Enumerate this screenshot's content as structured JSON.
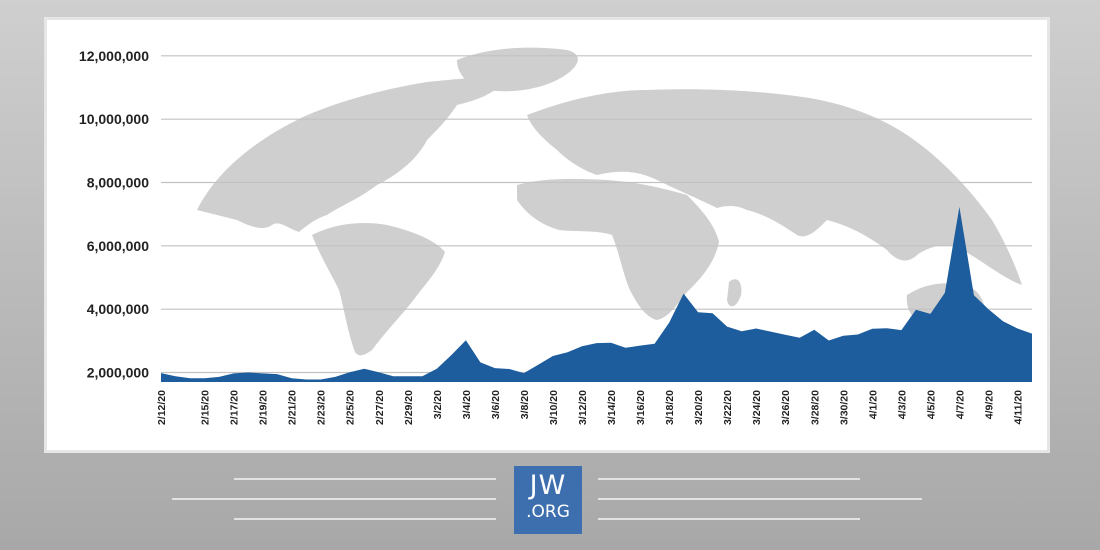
{
  "chart_data": {
    "type": "area",
    "title": "",
    "xlabel": "",
    "ylabel": "",
    "ylim": [
      1700000,
      12500000
    ],
    "yticks": [
      2000000,
      4000000,
      6000000,
      8000000,
      10000000,
      12000000
    ],
    "ytick_labels": [
      "2,000,000",
      "4,000,000",
      "6,000,000",
      "8,000,000",
      "10,000,000",
      "12,000,000"
    ],
    "x_dates": [
      "2/12/20",
      "2/13/20",
      "2/14/20",
      "2/15/20",
      "2/16/20",
      "2/17/20",
      "2/18/20",
      "2/19/20",
      "2/20/20",
      "2/21/20",
      "2/22/20",
      "2/23/20",
      "2/24/20",
      "2/25/20",
      "2/26/20",
      "2/27/20",
      "2/28/20",
      "2/29/20",
      "3/1/20",
      "3/2/20",
      "3/3/20",
      "3/4/20",
      "3/5/20",
      "3/6/20",
      "3/7/20",
      "3/8/20",
      "3/9/20",
      "3/10/20",
      "3/11/20",
      "3/12/20",
      "3/13/20",
      "3/14/20",
      "3/15/20",
      "3/16/20",
      "3/17/20",
      "3/18/20",
      "3/19/20",
      "3/20/20",
      "3/21/20",
      "3/22/20",
      "3/23/20",
      "3/24/20",
      "3/25/20",
      "3/26/20",
      "3/27/20",
      "3/28/20",
      "3/29/20",
      "3/30/20",
      "3/31/20",
      "4/1/20",
      "4/2/20",
      "4/3/20",
      "4/4/20",
      "4/5/20",
      "4/6/20",
      "4/7/20",
      "4/8/20",
      "4/9/20",
      "4/10/20",
      "4/11/20",
      "4/12/20"
    ],
    "x_tick_labels": [
      "2/12/20",
      "2/15/20",
      "2/17/20",
      "2/19/20",
      "2/21/20",
      "2/23/20",
      "2/25/20",
      "2/27/20",
      "2/29/20",
      "3/2/20",
      "3/4/20",
      "3/6/20",
      "3/8/20",
      "3/10/20",
      "3/12/20",
      "3/14/20",
      "3/16/20",
      "3/18/20",
      "3/20/20",
      "3/22/20",
      "3/24/20",
      "3/26/20",
      "3/28/20",
      "3/30/20",
      "4/1/20",
      "4/3/20",
      "4/5/20",
      "4/7/20",
      "4/9/20",
      "4/11/20"
    ],
    "series": [
      {
        "values": [
          1980000,
          1880000,
          1820000,
          1820000,
          1860000,
          1970000,
          2000000,
          1970000,
          1950000,
          1820000,
          1780000,
          1780000,
          1860000,
          2010000,
          2120000,
          2010000,
          1880000,
          1880000,
          1880000,
          2120000,
          2550000,
          3020000,
          2320000,
          2140000,
          2110000,
          1980000,
          2250000,
          2520000,
          2640000,
          2830000,
          2930000,
          2940000,
          2780000,
          2850000,
          2910000,
          3570000,
          4490000,
          3900000,
          3870000,
          3450000,
          3300000,
          3390000,
          3290000,
          3190000,
          3100000,
          3350000,
          3010000,
          3160000,
          3200000,
          3380000,
          3400000,
          3340000,
          3980000,
          3850000,
          4520000,
          7230000,
          4440000,
          4000000,
          3620000,
          3390000,
          3230000
        ]
      }
    ],
    "grid": true,
    "legend": "none",
    "colors": {
      "area": "#1d5d9e",
      "grid": "#c2c2c2",
      "axis_text": "#222222"
    },
    "background": "world map silhouette (gray)"
  },
  "footer": {
    "logo_line1": "JW",
    "logo_line2": ".ORG"
  }
}
